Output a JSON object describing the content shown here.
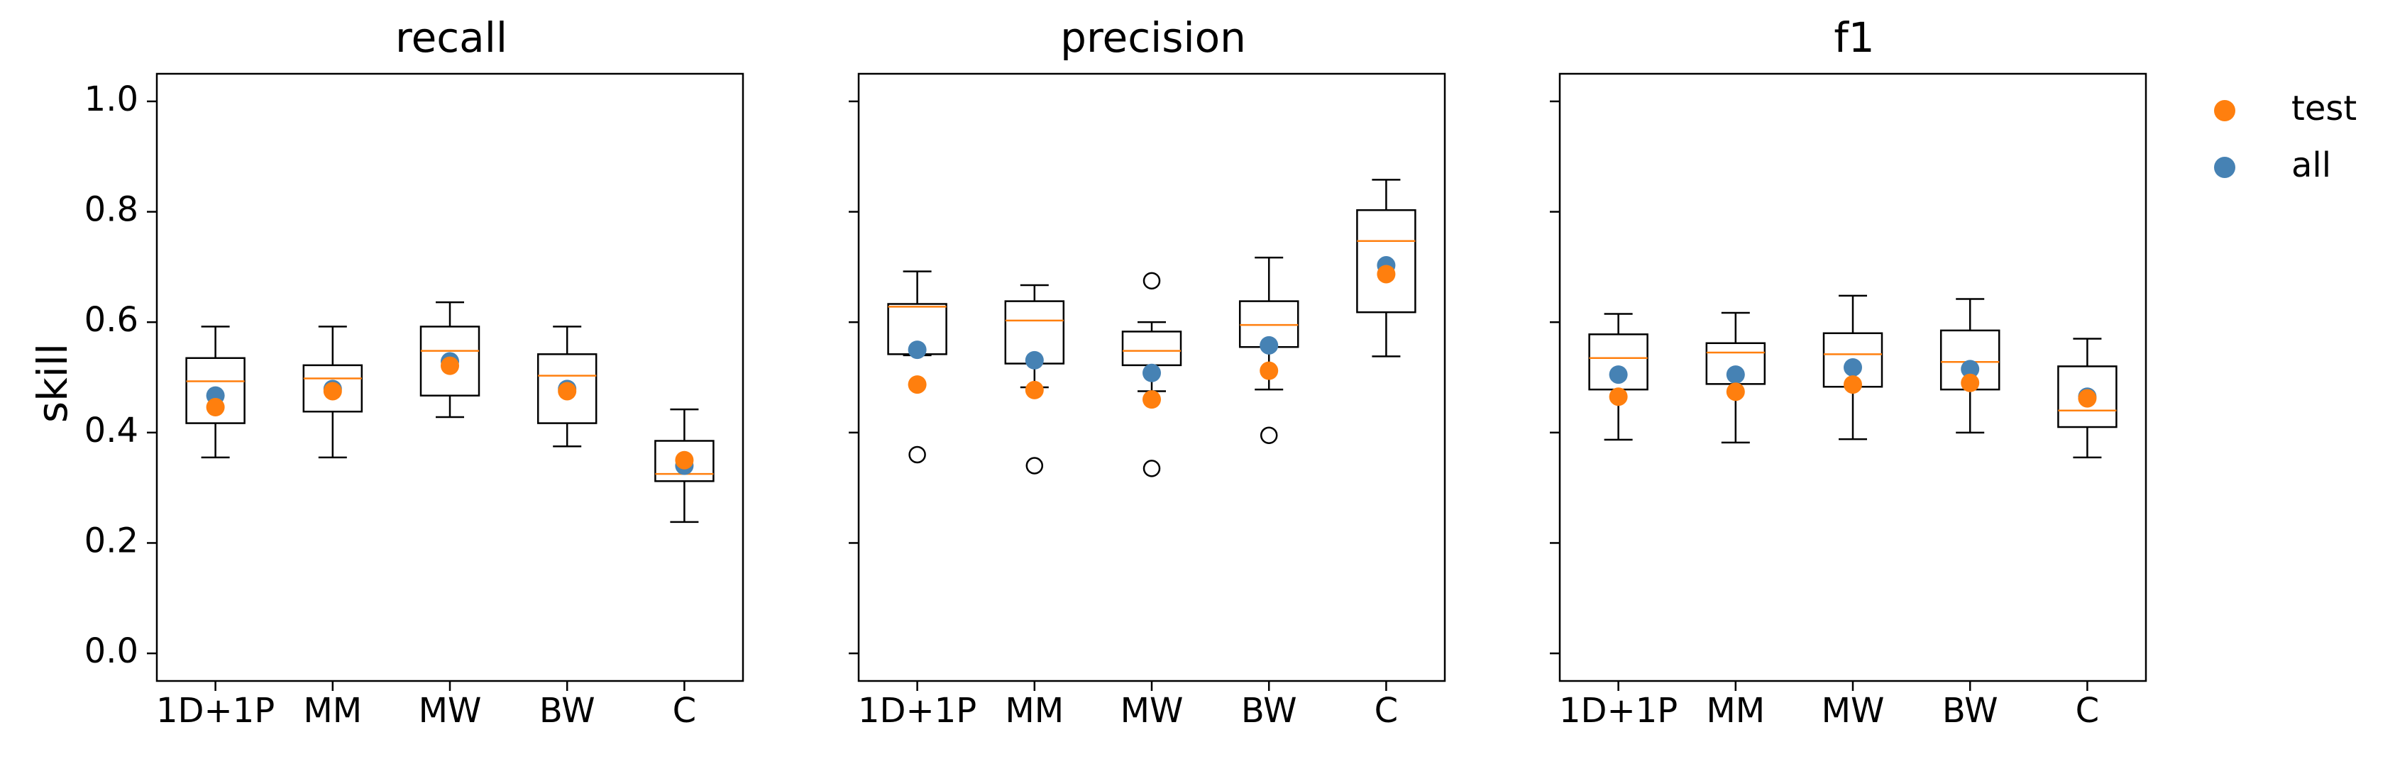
{
  "chart_data": {
    "type": "boxplot",
    "ylabel": "skill",
    "ylim": [
      -0.05,
      1.05
    ],
    "yticks": [
      "0.0",
      "0.2",
      "0.4",
      "0.6",
      "0.8",
      "1.0"
    ],
    "categories": [
      "1D+1P",
      "MM",
      "MW",
      "BW",
      "C"
    ],
    "legend": {
      "placement": "upper-right-outside",
      "entries": [
        {
          "name": "test",
          "color": "#ff7f0e"
        },
        {
          "name": "all",
          "color": "#4682b4"
        }
      ]
    },
    "colors": {
      "median": "#ff7f0e",
      "test": "#ff7f0e",
      "all": "#4682b4",
      "box": "#000000"
    },
    "panels": [
      {
        "title": "recall",
        "boxes": [
          {
            "category": "1D+1P",
            "whisker_low": 0.355,
            "q1": 0.417,
            "median": 0.493,
            "q3": 0.535,
            "whisker_high": 0.592,
            "outliers": [],
            "test": 0.446,
            "all": 0.467
          },
          {
            "category": "MM",
            "whisker_low": 0.355,
            "q1": 0.438,
            "median": 0.498,
            "q3": 0.522,
            "whisker_high": 0.592,
            "outliers": [],
            "test": 0.475,
            "all": 0.479
          },
          {
            "category": "MW",
            "whisker_low": 0.428,
            "q1": 0.467,
            "median": 0.548,
            "q3": 0.592,
            "whisker_high": 0.636,
            "outliers": [],
            "test": 0.521,
            "all": 0.529
          },
          {
            "category": "BW",
            "whisker_low": 0.375,
            "q1": 0.417,
            "median": 0.503,
            "q3": 0.542,
            "whisker_high": 0.592,
            "outliers": [],
            "test": 0.475,
            "all": 0.479
          },
          {
            "category": "C",
            "whisker_low": 0.238,
            "q1": 0.312,
            "median": 0.325,
            "q3": 0.385,
            "whisker_high": 0.442,
            "outliers": [],
            "test": 0.35,
            "all": 0.34
          }
        ]
      },
      {
        "title": "precision",
        "boxes": [
          {
            "category": "1D+1P",
            "whisker_low": 0.54,
            "q1": 0.542,
            "median": 0.628,
            "q3": 0.633,
            "whisker_high": 0.692,
            "outliers": [
              0.36
            ],
            "test": 0.487,
            "all": 0.55
          },
          {
            "category": "MM",
            "whisker_low": 0.482,
            "q1": 0.525,
            "median": 0.603,
            "q3": 0.638,
            "whisker_high": 0.667,
            "outliers": [
              0.34
            ],
            "test": 0.477,
            "all": 0.531
          },
          {
            "category": "MW",
            "whisker_low": 0.475,
            "q1": 0.522,
            "median": 0.548,
            "q3": 0.583,
            "whisker_high": 0.6,
            "outliers": [
              0.675,
              0.335
            ],
            "test": 0.46,
            "all": 0.508
          },
          {
            "category": "BW",
            "whisker_low": 0.478,
            "q1": 0.555,
            "median": 0.595,
            "q3": 0.638,
            "whisker_high": 0.717,
            "outliers": [
              0.395
            ],
            "test": 0.512,
            "all": 0.558
          },
          {
            "category": "C",
            "whisker_low": 0.538,
            "q1": 0.618,
            "median": 0.747,
            "q3": 0.803,
            "whisker_high": 0.858,
            "outliers": [],
            "test": 0.687,
            "all": 0.703
          }
        ]
      },
      {
        "title": "f1",
        "boxes": [
          {
            "category": "1D+1P",
            "whisker_low": 0.387,
            "q1": 0.478,
            "median": 0.535,
            "q3": 0.578,
            "whisker_high": 0.615,
            "outliers": [],
            "test": 0.465,
            "all": 0.505
          },
          {
            "category": "MM",
            "whisker_low": 0.382,
            "q1": 0.488,
            "median": 0.545,
            "q3": 0.562,
            "whisker_high": 0.617,
            "outliers": [],
            "test": 0.474,
            "all": 0.505
          },
          {
            "category": "MW",
            "whisker_low": 0.388,
            "q1": 0.483,
            "median": 0.542,
            "q3": 0.58,
            "whisker_high": 0.648,
            "outliers": [],
            "test": 0.487,
            "all": 0.518
          },
          {
            "category": "BW",
            "whisker_low": 0.4,
            "q1": 0.478,
            "median": 0.528,
            "q3": 0.585,
            "whisker_high": 0.642,
            "outliers": [],
            "test": 0.49,
            "all": 0.515
          },
          {
            "category": "C",
            "whisker_low": 0.355,
            "q1": 0.41,
            "median": 0.44,
            "q3": 0.52,
            "whisker_high": 0.57,
            "outliers": [],
            "test": 0.462,
            "all": 0.465
          }
        ]
      }
    ]
  }
}
